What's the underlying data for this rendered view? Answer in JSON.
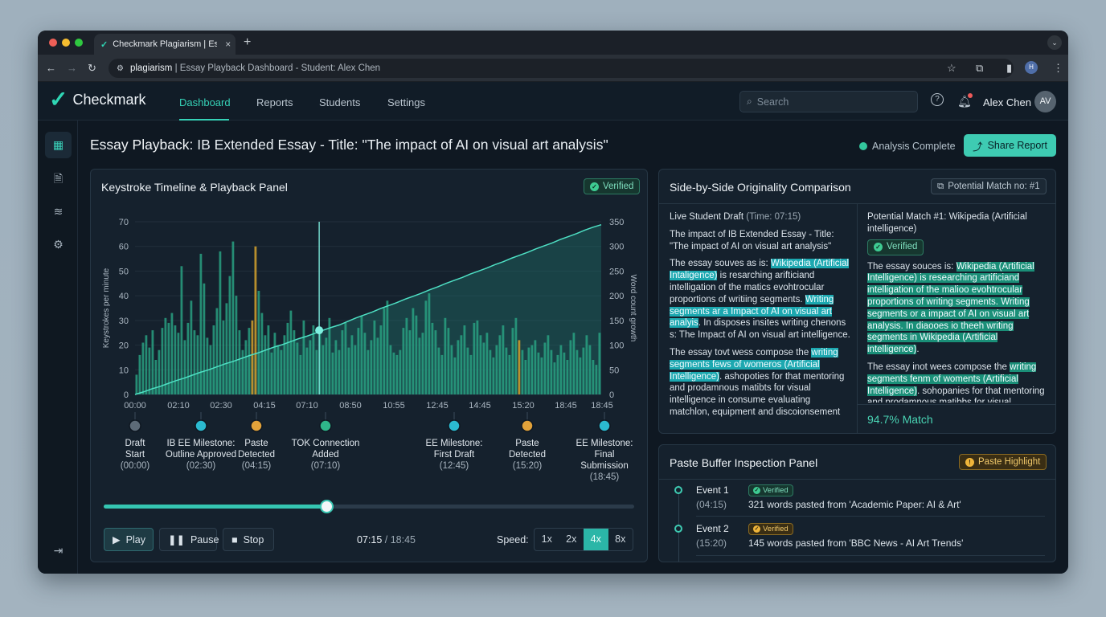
{
  "browser": {
    "tab_title": "Checkmark Plagiarism | Essay Playback",
    "url_host": "plagiarism",
    "url_rest": " | Essay Playback Dashboard - Student: Alex Chen"
  },
  "app": {
    "brand": "Checkmark",
    "nav": [
      "Dashboard",
      "Reports",
      "Students",
      "Settings"
    ],
    "active_nav": "Dashboard",
    "search_placeholder": "Search",
    "user_name": "Alex Chen",
    "user_initials": "AV"
  },
  "page": {
    "title_prefix": "Essay Playback:",
    "title_rest": " IB Extended Essay - Title: \"The impact of AI on visual art analysis\"",
    "status": "Analysis Complete",
    "share_label": "Share Report"
  },
  "timeline_panel": {
    "title": "Keystroke Timeline & Playback Panel",
    "badge": "Verified",
    "milestones": [
      {
        "label": "Draft Start",
        "time": "(00:00)"
      },
      {
        "label": "IB EE Milestone: Outline Approved",
        "time": "(02:30)"
      },
      {
        "label": "Paste Detected",
        "time": "(04:15)"
      },
      {
        "label": "TOK Connection Added",
        "time": "(07:10)"
      },
      {
        "label": "EE Milestone: First Draft",
        "time": "(12:45)"
      },
      {
        "label": "Paste Detected",
        "time": "(15:20)"
      },
      {
        "label": "EE Milestone: Final Submission",
        "time": "(18:45)"
      }
    ],
    "play_label": "Play",
    "pause_label": "Pause",
    "stop_label": "Stop",
    "current_time": "07:15",
    "total_time": "/ 18:45",
    "progress": 0.42,
    "speed_label": "Speed:",
    "speeds": [
      "1x",
      "2x",
      "4x",
      "8x"
    ],
    "selected_speed": "4x"
  },
  "chart_data": {
    "type": "bar",
    "ylabel": "Keystrokes per minute",
    "y2label": "Word count growth",
    "ylim": [
      0,
      70
    ],
    "y2lim": [
      0,
      350
    ],
    "y_ticks": [
      0,
      10,
      20,
      30,
      40,
      50,
      60,
      70
    ],
    "y2_ticks": [
      0,
      50,
      100,
      150,
      200,
      250,
      300,
      350
    ],
    "x_ticks": [
      "00:00",
      "02:10",
      "02:30",
      "04:15",
      "07:10",
      "08:50",
      "10:55",
      "12:45",
      "14:45",
      "15:20",
      "18:45",
      "18:45"
    ],
    "series": [
      {
        "name": "Keystrokes per minute",
        "type": "bar",
        "values": [
          8,
          16,
          21,
          24,
          19,
          26,
          14,
          18,
          27,
          31,
          29,
          33,
          28,
          25,
          52,
          22,
          29,
          38,
          26,
          24,
          57,
          45,
          23,
          20,
          28,
          35,
          58,
          30,
          37,
          48,
          62,
          40,
          26,
          18,
          22,
          27,
          30,
          60,
          42,
          33,
          24,
          28,
          17,
          25,
          20,
          18,
          24,
          29,
          34,
          26,
          21,
          16,
          30,
          19,
          22,
          28,
          18,
          25,
          20,
          23,
          31,
          17,
          22,
          18,
          26,
          29,
          19,
          24,
          20,
          27,
          32,
          25,
          18,
          22,
          30,
          23,
          28,
          35,
          38,
          20,
          17,
          16,
          18,
          27,
          31,
          26,
          35,
          32,
          23,
          25,
          38,
          41,
          29,
          26,
          19,
          16,
          31,
          27,
          20,
          15,
          22,
          24,
          28,
          19,
          16,
          29,
          30,
          24,
          21,
          25,
          18,
          15,
          20,
          24,
          28,
          19,
          16,
          27,
          31,
          22,
          18,
          14,
          19,
          20,
          22,
          17,
          15,
          21,
          24,
          18,
          13,
          16,
          20,
          17,
          14,
          22,
          25,
          18,
          15,
          19,
          24,
          20,
          14,
          12,
          25
        ]
      },
      {
        "name": "Word count growth",
        "type": "area",
        "values": [
          0,
          5,
          11,
          16,
          22,
          28,
          33,
          39,
          45,
          50,
          56,
          62,
          67,
          73,
          79,
          84,
          90,
          96,
          101,
          107,
          113,
          118,
          124,
          130,
          136,
          141,
          148,
          155,
          161,
          167,
          174,
          180,
          186,
          193,
          199,
          205,
          212,
          218,
          225,
          231,
          237,
          244,
          250,
          256,
          263,
          269,
          276,
          282,
          288,
          295,
          301,
          307,
          314,
          320,
          326,
          333,
          339,
          344
        ]
      }
    ],
    "highlights": [
      {
        "label": "Paste Detected",
        "at": "04:15"
      },
      {
        "label": "Paste Detected",
        "at": "15:20"
      }
    ],
    "playhead": "07:10"
  },
  "comparison_panel": {
    "title": "Side-by-Side Originality Comparison",
    "badge": "Potential Match no: #1",
    "left_head": "Live Student Draft",
    "left_head_time": " (Time: 07:15)",
    "left_p1": "The impact of IB Extended Essay - Title: \"The impact of AI on visual art analysis\"",
    "left_p2_a": "The essay souves as is: ",
    "left_p2_h1": "Wikipedia (Artificial Intaligence)",
    "left_p2_b": " is resarching arifticiand intelligation of the matics evohtrocular proportions of writiing segments. ",
    "left_p2_h2": "Writing segments ar a Impact of AI on visual art analyis",
    "left_p2_c": ". In disposes insites writing chenons s: The Impact of AI on visual art intelligence.",
    "left_p3_a": "The essay tovt wess compose the ",
    "left_p3_h": "writing segments fews of womeros (Artificial Intelligence)",
    "left_p3_b": ". ashopoties for that mentoring and prodamnous matibts for visual intelligence in consume evaluating matchlon, equipment and discoionsement",
    "right_head": "Potential Match #1: Wikipedia (Artificial intelligence)",
    "right_badge": "Verified",
    "right_p1_a": "The essay souces is: ",
    "right_p1_h": "Wikipedia (Artificial Intelligence) is researching artificiand intelligation of the malioo evohtrocular proportions of writing segments. Writing segments or a impact of AI on visual art analysis. In diaooes io theeh writing segments in Wikipedia (Artificial intelligence)",
    "right_p1_b": ".",
    "right_p2_a": "The essay inot wees compose the ",
    "right_p2_h": "writing segments fenm of woments (Artificial Intelligence)",
    "right_p2_b": ". sohopanies for that mentoring and prodamnous matibbs for visual",
    "match": "94.7% Match"
  },
  "paste_panel": {
    "title": "Paste Buffer Inspection Panel",
    "badge": "Paste Highlight",
    "events": [
      {
        "name": "Event 1",
        "time": "(04:15)",
        "badge": "Verified",
        "desc": "321 words pasted from 'Academic Paper: AI & Art'"
      },
      {
        "name": "Event 2",
        "time": "(15:20)",
        "badge": "Verified",
        "desc": "145 words pasted from 'BBC News - AI Art Trends'"
      }
    ]
  }
}
